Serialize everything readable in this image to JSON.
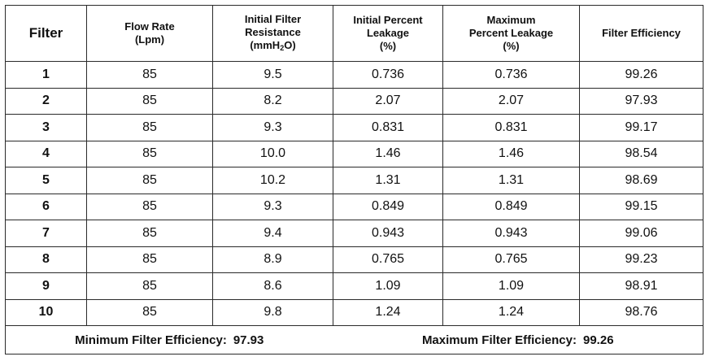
{
  "headers": {
    "filter": "Filter",
    "flow_rate": [
      "Flow Rate",
      "(Lpm)"
    ],
    "resistance": [
      "Initial Filter",
      "Resistance",
      "(mmH",
      "2",
      "O)"
    ],
    "initial_leakage": [
      "Initial Percent",
      "Leakage",
      "(%)"
    ],
    "max_leakage": [
      "Maximum",
      "Percent Leakage",
      "(%)"
    ],
    "efficiency": "Filter Efficiency"
  },
  "rows": [
    {
      "filter": "1",
      "flow": "85",
      "resistance": "9.5",
      "initial": "0.736",
      "maximum": "0.736",
      "efficiency": "99.26"
    },
    {
      "filter": "2",
      "flow": "85",
      "resistance": "8.2",
      "initial": "2.07",
      "maximum": "2.07",
      "efficiency": "97.93"
    },
    {
      "filter": "3",
      "flow": "85",
      "resistance": "9.3",
      "initial": "0.831",
      "maximum": "0.831",
      "efficiency": "99.17"
    },
    {
      "filter": "4",
      "flow": "85",
      "resistance": "10.0",
      "initial": "1.46",
      "maximum": "1.46",
      "efficiency": "98.54"
    },
    {
      "filter": "5",
      "flow": "85",
      "resistance": "10.2",
      "initial": "1.31",
      "maximum": "1.31",
      "efficiency": "98.69"
    },
    {
      "filter": "6",
      "flow": "85",
      "resistance": "9.3",
      "initial": "0.849",
      "maximum": "0.849",
      "efficiency": "99.15"
    },
    {
      "filter": "7",
      "flow": "85",
      "resistance": "9.4",
      "initial": "0.943",
      "maximum": "0.943",
      "efficiency": "99.06"
    },
    {
      "filter": "8",
      "flow": "85",
      "resistance": "8.9",
      "initial": "0.765",
      "maximum": "0.765",
      "efficiency": "99.23"
    },
    {
      "filter": "9",
      "flow": "85",
      "resistance": "8.6",
      "initial": "1.09",
      "maximum": "1.09",
      "efficiency": "98.91"
    },
    {
      "filter": "10",
      "flow": "85",
      "resistance": "9.8",
      "initial": "1.24",
      "maximum": "1.24",
      "efficiency": "98.76"
    }
  ],
  "summary": {
    "min_label": "Minimum Filter Efficiency:",
    "min_value": "97.93",
    "max_label": "Maximum Filter Efficiency:",
    "max_value": "99.26"
  }
}
